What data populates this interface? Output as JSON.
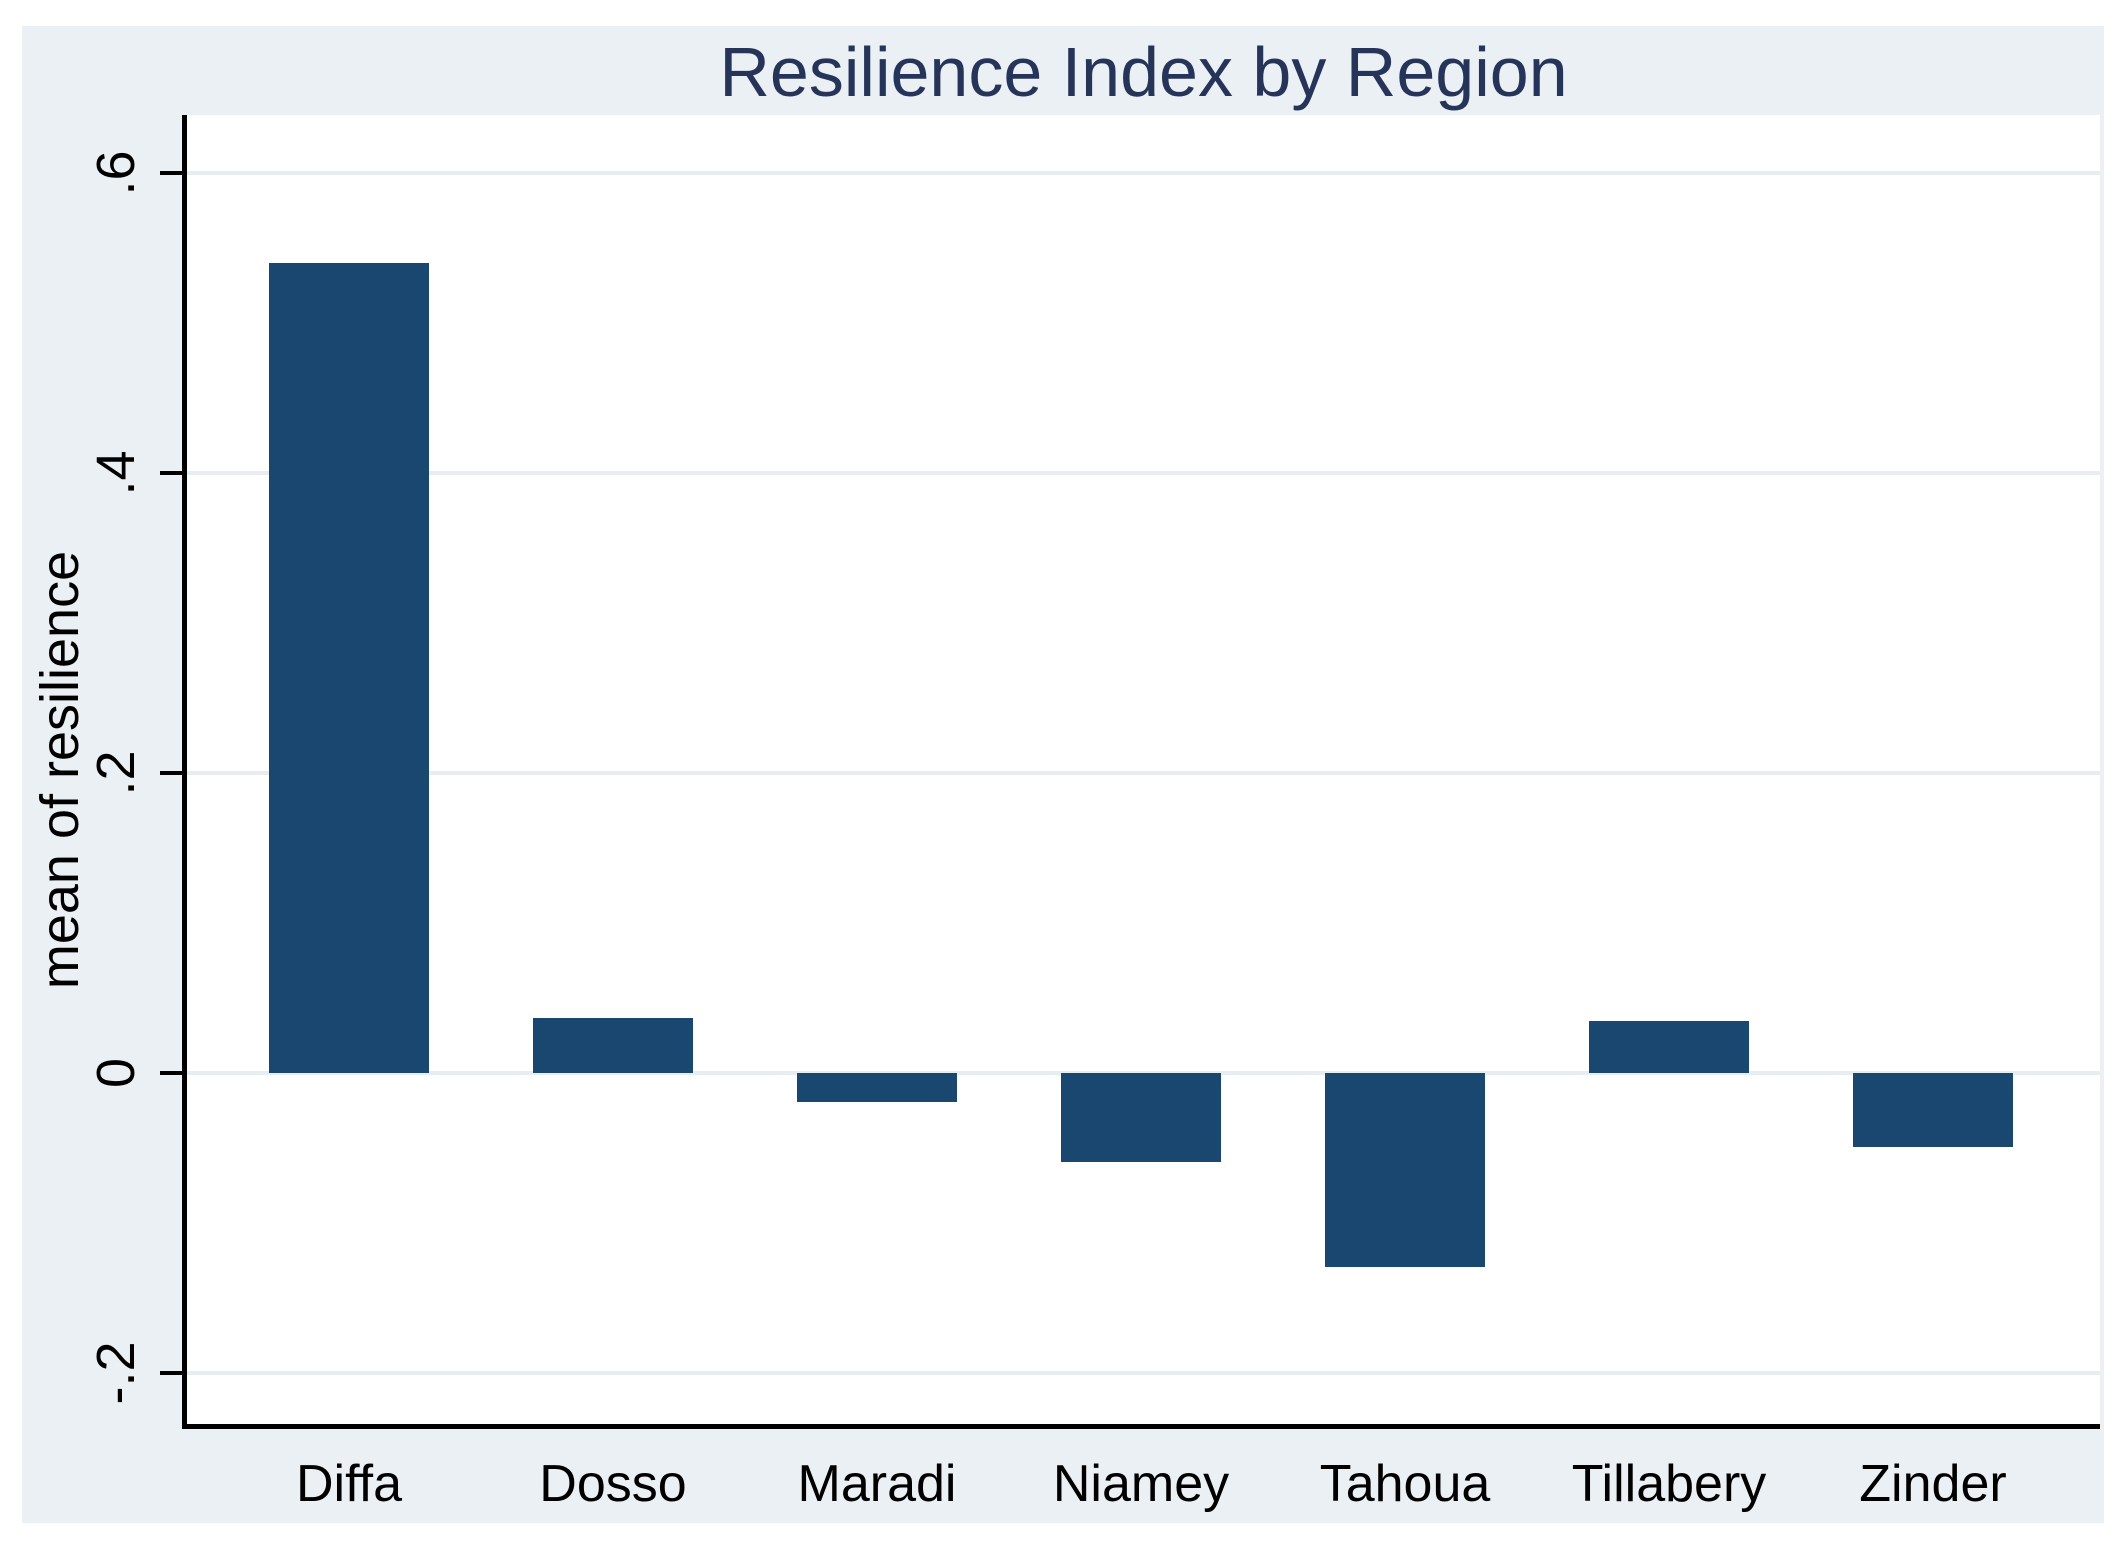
{
  "chart_data": {
    "type": "bar",
    "title": "Resilience Index by Region",
    "ylabel": "mean of resilience",
    "xlabel": "",
    "categories": [
      "Diffa",
      "Dosso",
      "Maradi",
      "Niamey",
      "Tahoua",
      "Tillabery",
      "Zinder"
    ],
    "values": [
      0.54,
      0.037,
      -0.019,
      -0.059,
      -0.129,
      0.035,
      -0.049
    ],
    "yticks": [
      -0.2,
      0,
      0.2,
      0.4,
      0.6
    ],
    "ytick_labels": [
      "-.2",
      "0",
      ".2",
      ".4",
      ".6"
    ],
    "ylim": [
      -0.237,
      0.639
    ],
    "grid": true,
    "legend": "none",
    "colors": {
      "bar": "#1a476f",
      "title": "#27345a",
      "background": "#eaf0f3",
      "gridline": "#e7eef2",
      "axis": "#000000",
      "plot_background": "#ffffff"
    }
  }
}
